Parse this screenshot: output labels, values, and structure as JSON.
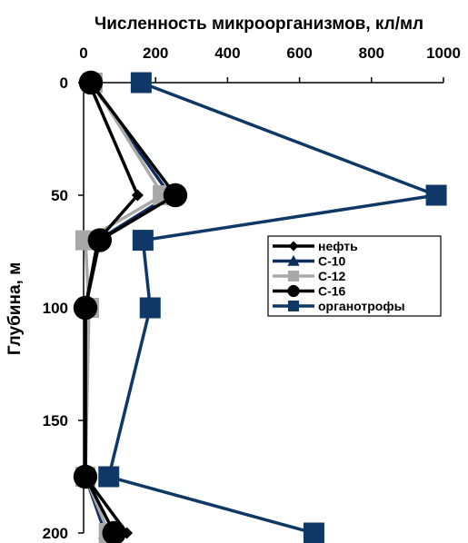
{
  "chart_data": {
    "type": "line",
    "orientation": "depth-profile",
    "xlabel": "Численность микроорганизмов, кл/мл",
    "ylabel": "Глубина, м",
    "xlim": [
      0,
      1000
    ],
    "ylim": [
      0,
      200
    ],
    "y_inverted": true,
    "x_axis_position": "top",
    "x_ticks": [
      "0",
      "200",
      "400",
      "600",
      "800",
      "1000"
    ],
    "y_ticks": [
      "0",
      "50",
      "100",
      "150",
      "200"
    ],
    "grid": false,
    "legend_position": "right-middle",
    "series": [
      {
        "name": "нефть",
        "color": "#000000",
        "marker": "diamond",
        "points": [
          [
            15,
            0
          ],
          [
            150,
            50
          ],
          [
            40,
            70
          ],
          [
            5,
            100
          ],
          [
            5,
            175
          ],
          [
            120,
            200
          ]
        ]
      },
      {
        "name": "С-10",
        "color": "#0f2d5c",
        "marker": "triangle",
        "points": [
          [
            20,
            0
          ],
          [
            240,
            50
          ],
          [
            40,
            70
          ],
          [
            5,
            100
          ],
          [
            5,
            175
          ],
          [
            60,
            200
          ]
        ]
      },
      {
        "name": "С-12",
        "color": "#a8a8a8",
        "marker": "square",
        "points": [
          [
            25,
            0
          ],
          [
            220,
            50
          ],
          [
            5,
            70
          ],
          [
            15,
            100
          ],
          [
            5,
            175
          ],
          [
            70,
            200
          ]
        ]
      },
      {
        "name": "С-16",
        "color": "#000000",
        "marker": "circle",
        "points": [
          [
            20,
            0
          ],
          [
            255,
            50
          ],
          [
            45,
            70
          ],
          [
            5,
            100
          ],
          [
            5,
            175
          ],
          [
            85,
            200
          ]
        ]
      },
      {
        "name": "органотрофы",
        "color": "#0f3866",
        "marker": "square",
        "points": [
          [
            160,
            0
          ],
          [
            980,
            50
          ],
          [
            165,
            70
          ],
          [
            185,
            100
          ],
          [
            70,
            175
          ],
          [
            640,
            200
          ]
        ]
      }
    ]
  }
}
